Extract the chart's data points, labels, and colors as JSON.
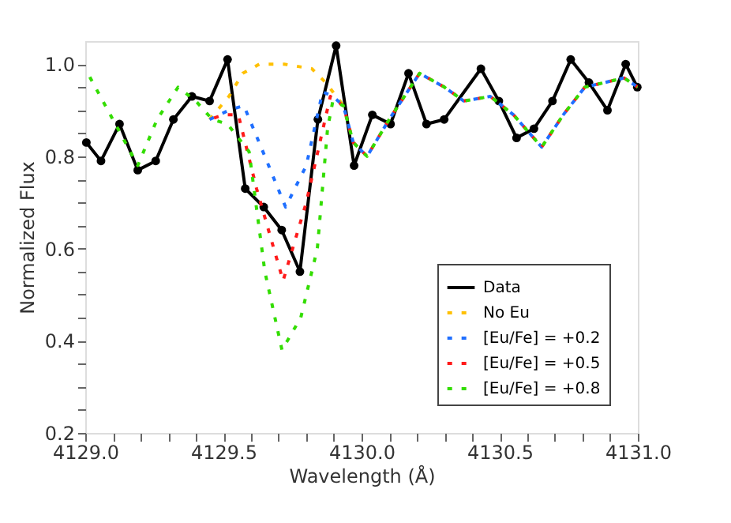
{
  "chart_data": {
    "type": "line",
    "xlabel": "Wavelength (Å)",
    "ylabel": "Normalized Flux",
    "xlim": [
      4129.0,
      4131.0
    ],
    "ylim": [
      0.2,
      1.05
    ],
    "xticks": [
      {
        "value": 4129.0,
        "label": "4129.0"
      },
      {
        "value": 4129.1,
        "label": null
      },
      {
        "value": 4129.2,
        "label": null
      },
      {
        "value": 4129.3,
        "label": null
      },
      {
        "value": 4129.4,
        "label": null
      },
      {
        "value": 4129.5,
        "label": "4129.5"
      },
      {
        "value": 4129.6,
        "label": null
      },
      {
        "value": 4129.7,
        "label": null
      },
      {
        "value": 4129.8,
        "label": null
      },
      {
        "value": 4129.9,
        "label": null
      },
      {
        "value": 4130.0,
        "label": "4130.0"
      },
      {
        "value": 4130.1,
        "label": null
      },
      {
        "value": 4130.2,
        "label": null
      },
      {
        "value": 4130.3,
        "label": null
      },
      {
        "value": 4130.4,
        "label": null
      },
      {
        "value": 4130.5,
        "label": "4130.5"
      },
      {
        "value": 4130.6,
        "label": null
      },
      {
        "value": 4130.7,
        "label": null
      },
      {
        "value": 4130.8,
        "label": null
      },
      {
        "value": 4130.9,
        "label": null
      },
      {
        "value": 4131.0,
        "label": "4131.0"
      }
    ],
    "yticks": [
      {
        "value": 0.2,
        "label": "0.2"
      },
      {
        "value": 0.25,
        "label": null
      },
      {
        "value": 0.3,
        "label": null
      },
      {
        "value": 0.35,
        "label": null
      },
      {
        "value": 0.4,
        "label": "0.4"
      },
      {
        "value": 0.45,
        "label": null
      },
      {
        "value": 0.5,
        "label": null
      },
      {
        "value": 0.55,
        "label": null
      },
      {
        "value": 0.6,
        "label": "0.6"
      },
      {
        "value": 0.65,
        "label": null
      },
      {
        "value": 0.7,
        "label": null
      },
      {
        "value": 0.75,
        "label": null
      },
      {
        "value": 0.8,
        "label": "0.8"
      },
      {
        "value": 0.85,
        "label": null
      },
      {
        "value": 0.9,
        "label": null
      },
      {
        "value": 0.95,
        "label": null
      },
      {
        "value": 1.0,
        "label": "1.0"
      }
    ],
    "grid": false,
    "legend": "bottom right",
    "series": [
      {
        "name": "Data",
        "color": "#000000",
        "line_style": "solid",
        "marker": "circle",
        "x": [
          4129.004,
          4129.057,
          4129.124,
          4129.19,
          4129.255,
          4129.319,
          4129.386,
          4129.45,
          4129.515,
          4129.579,
          4129.646,
          4129.711,
          4129.777,
          4129.842,
          4129.908,
          4129.973,
          4130.039,
          4130.105,
          4130.17,
          4130.235,
          4130.299,
          4130.432,
          4130.497,
          4130.561,
          4130.624,
          4130.691,
          4130.757,
          4130.823,
          4130.89,
          4130.956,
          4130.998
        ],
        "values": [
          0.83,
          0.79,
          0.87,
          0.77,
          0.79,
          0.88,
          0.93,
          0.92,
          1.01,
          0.73,
          0.69,
          0.64,
          0.55,
          0.88,
          1.04,
          0.78,
          0.89,
          0.87,
          0.98,
          0.87,
          0.88,
          0.99,
          0.92,
          0.84,
          0.86,
          0.92,
          1.01,
          0.96,
          0.9,
          1.0,
          0.95
        ]
      },
      {
        "name": "No Eu",
        "color": "#ffc000",
        "line_style": "dashed",
        "marker": "none",
        "x": [
          4129.45,
          4129.52,
          4129.57,
          4129.63,
          4129.72,
          4129.82,
          4129.87,
          4129.896,
          4129.934
        ],
        "values": [
          0.88,
          0.93,
          0.98,
          1.0,
          1.0,
          0.99,
          0.96,
          0.94,
          0.91
        ]
      },
      {
        "name": "[Eu/Fe] = +0.2",
        "color": "#1f6fff",
        "line_style": "dashed",
        "marker": "none",
        "x": [
          4129.45,
          4129.52,
          4129.574,
          4129.65,
          4129.725,
          4129.8,
          4129.859,
          4129.896,
          4129.934,
          4129.97,
          4130.02,
          4130.1,
          4130.21,
          4130.3,
          4130.37,
          4130.466,
          4130.55,
          4130.652,
          4130.73,
          4130.808,
          4130.95,
          4131.0
        ],
        "values": [
          0.88,
          0.9,
          0.91,
          0.8,
          0.69,
          0.78,
          0.94,
          0.93,
          0.91,
          0.83,
          0.8,
          0.88,
          0.98,
          0.95,
          0.92,
          0.93,
          0.89,
          0.82,
          0.89,
          0.95,
          0.97,
          0.95
        ]
      },
      {
        "name": "[Eu/Fe] = +0.5",
        "color": "#ff1a1a",
        "line_style": "dashed",
        "marker": "none",
        "x": [
          4129.45,
          4129.5,
          4129.554,
          4129.62,
          4129.716,
          4129.8,
          4129.887,
          4129.934,
          4129.97,
          4130.02,
          4130.1,
          4130.21,
          4130.3,
          4130.37,
          4130.466,
          4130.55,
          4130.652,
          4130.73,
          4130.808,
          4130.95,
          4131.0
        ],
        "values": [
          0.88,
          0.89,
          0.89,
          0.73,
          0.53,
          0.7,
          0.93,
          0.91,
          0.83,
          0.8,
          0.88,
          0.98,
          0.95,
          0.92,
          0.93,
          0.89,
          0.82,
          0.89,
          0.95,
          0.97,
          0.95
        ]
      },
      {
        "name": "[Eu/Fe] = +0.8",
        "color": "#33dd00",
        "line_style": "dashed",
        "marker": "none",
        "x": [
          4129.0,
          4129.1,
          4129.19,
          4129.26,
          4129.336,
          4129.4,
          4129.46,
          4129.515,
          4129.593,
          4129.65,
          4129.712,
          4129.78,
          4129.84,
          4129.877,
          4129.896,
          4129.934,
          4129.97,
          4130.02,
          4130.1,
          4130.21,
          4130.3,
          4130.37,
          4130.466,
          4130.55,
          4130.652,
          4130.73,
          4130.808,
          4130.95,
          4131.0
        ],
        "values": [
          0.99,
          0.88,
          0.78,
          0.88,
          0.95,
          0.92,
          0.88,
          0.87,
          0.81,
          0.55,
          0.38,
          0.45,
          0.6,
          0.86,
          0.92,
          0.91,
          0.83,
          0.8,
          0.88,
          0.98,
          0.95,
          0.92,
          0.93,
          0.89,
          0.82,
          0.89,
          0.95,
          0.97,
          0.95
        ]
      }
    ]
  }
}
